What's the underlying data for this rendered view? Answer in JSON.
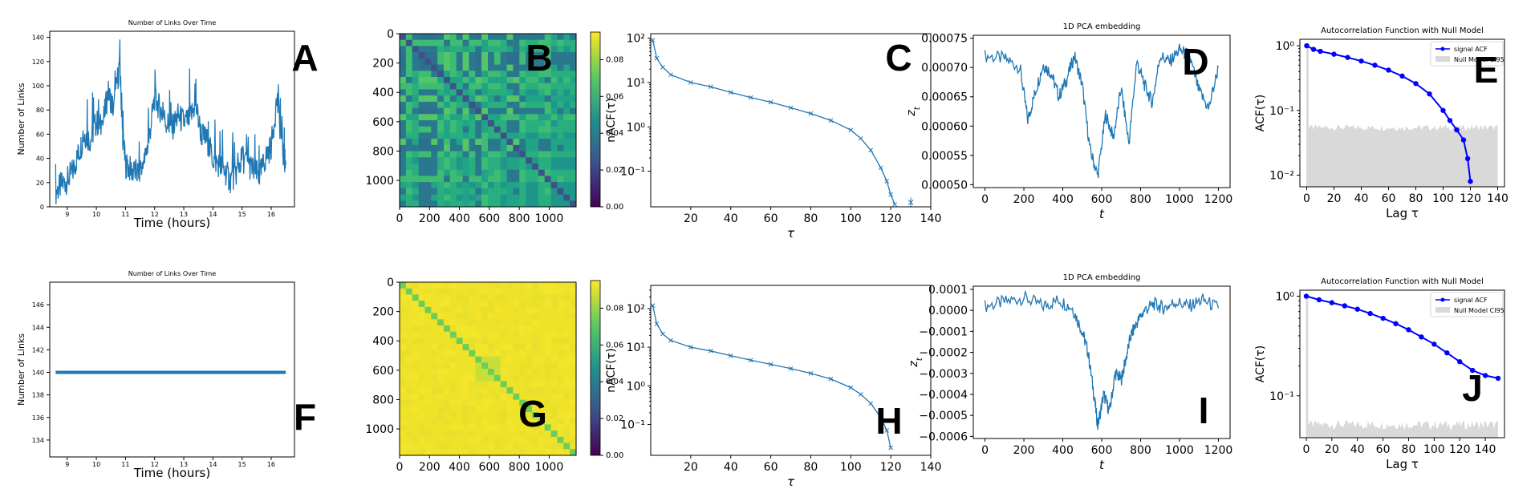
{
  "colors": {
    "line": "#1f77b4",
    "acf": "#0000ff",
    "null_band": "#d9d9d9",
    "yellow": "#f2e01c",
    "viridis": [
      "#440154",
      "#3b528b",
      "#21918c",
      "#5ec962",
      "#fde725"
    ]
  },
  "chart_data": [
    {
      "id": "A",
      "type": "line",
      "letter": "A",
      "title": "Number of Links Over Time",
      "xlabel": "Time (hours)",
      "ylabel": "Number of Links",
      "xlim": [
        8.4,
        16.8
      ],
      "ylim": [
        0,
        145
      ],
      "xticks": [
        9,
        10,
        11,
        12,
        13,
        14,
        15,
        16
      ],
      "yticks": [
        0,
        20,
        40,
        60,
        80,
        100,
        120,
        140
      ],
      "ytick_labels": [
        "0",
        "20",
        "40",
        "60",
        "80",
        "100",
        "120",
        "140"
      ],
      "points": [
        [
          8.6,
          12
        ],
        [
          8.8,
          18
        ],
        [
          9.0,
          22
        ],
        [
          9.2,
          30
        ],
        [
          9.4,
          45
        ],
        [
          9.6,
          60
        ],
        [
          9.8,
          55
        ],
        [
          10.0,
          70
        ],
        [
          10.2,
          65
        ],
        [
          10.4,
          95
        ],
        [
          10.6,
          80
        ],
        [
          10.8,
          120
        ],
        [
          10.9,
          60
        ],
        [
          11.0,
          35
        ],
        [
          11.2,
          30
        ],
        [
          11.4,
          28
        ],
        [
          11.6,
          32
        ],
        [
          11.8,
          55
        ],
        [
          12.0,
          90
        ],
        [
          12.2,
          80
        ],
        [
          12.4,
          70
        ],
        [
          12.6,
          65
        ],
        [
          12.8,
          75
        ],
        [
          13.0,
          70
        ],
        [
          13.2,
          72
        ],
        [
          13.4,
          85
        ],
        [
          13.6,
          60
        ],
        [
          13.8,
          55
        ],
        [
          14.0,
          40
        ],
        [
          14.2,
          35
        ],
        [
          14.4,
          30
        ],
        [
          14.6,
          22
        ],
        [
          14.8,
          28
        ],
        [
          15.0,
          40
        ],
        [
          15.2,
          35
        ],
        [
          15.4,
          30
        ],
        [
          15.6,
          25
        ],
        [
          15.8,
          40
        ],
        [
          16.0,
          50
        ],
        [
          16.2,
          90
        ],
        [
          16.4,
          45
        ],
        [
          16.5,
          35
        ]
      ]
    },
    {
      "id": "B",
      "type": "heatmap",
      "letter": "B",
      "xticks": [
        0,
        200,
        400,
        600,
        800,
        1000
      ],
      "yticks": [
        0,
        200,
        400,
        600,
        800,
        1000
      ],
      "extent": 1180,
      "colorbar_ticks": [
        "0.00",
        "0.02",
        "0.04",
        "0.06",
        "0.08"
      ],
      "colorbar_max": 0.095,
      "variant": "green"
    },
    {
      "id": "C",
      "type": "line",
      "scale": "log",
      "letter": "C",
      "xlabel": "τ",
      "ylabel": "nACF(τ)",
      "xlim": [
        0,
        140
      ],
      "ylim_log": [
        -1.8,
        2.1
      ],
      "xticks": [
        20,
        40,
        60,
        80,
        100,
        120,
        140
      ],
      "ytick_exps": [
        -1,
        0,
        1,
        2
      ],
      "ytick_labels": [
        "10⁻¹",
        "10⁰",
        "10¹",
        "10²"
      ],
      "points": [
        [
          1,
          90
        ],
        [
          3,
          35
        ],
        [
          6,
          22
        ],
        [
          10,
          15
        ],
        [
          20,
          10
        ],
        [
          30,
          8
        ],
        [
          40,
          6
        ],
        [
          50,
          4.6
        ],
        [
          60,
          3.6
        ],
        [
          70,
          2.7
        ],
        [
          80,
          2.0
        ],
        [
          90,
          1.4
        ],
        [
          100,
          0.85
        ],
        [
          105,
          0.55
        ],
        [
          110,
          0.3
        ],
        [
          115,
          0.12
        ],
        [
          118,
          0.06
        ],
        [
          120,
          0.03
        ],
        [
          122,
          0.018
        ]
      ],
      "outlier": [
        130,
        0.02
      ]
    },
    {
      "id": "D",
      "type": "line",
      "letter": "D",
      "title": "1D PCA embedding",
      "xlabel": "t",
      "ylabel": "z_t",
      "xlim": [
        -60,
        1260
      ],
      "ylim": [
        0.000495,
        0.000755
      ],
      "xticks": [
        0,
        200,
        400,
        600,
        800,
        1000,
        1200
      ],
      "yticks": [
        0.0005,
        0.00055,
        0.0006,
        0.00065,
        0.0007,
        0.00075
      ],
      "ytick_labels": [
        "0.00050",
        "0.00055",
        "0.00060",
        "0.00065",
        "0.00070",
        "0.00075"
      ],
      "points": [
        [
          0,
          0.00072
        ],
        [
          100,
          0.000715
        ],
        [
          180,
          0.0007
        ],
        [
          220,
          0.00061
        ],
        [
          260,
          0.00066
        ],
        [
          300,
          0.000705
        ],
        [
          340,
          0.00069
        ],
        [
          380,
          0.00065
        ],
        [
          420,
          0.00068
        ],
        [
          460,
          0.00072
        ],
        [
          500,
          0.00067
        ],
        [
          540,
          0.00056
        ],
        [
          580,
          0.000515
        ],
        [
          620,
          0.00062
        ],
        [
          660,
          0.00058
        ],
        [
          700,
          0.000665
        ],
        [
          740,
          0.00057
        ],
        [
          780,
          0.00071
        ],
        [
          820,
          0.00067
        ],
        [
          860,
          0.00064
        ],
        [
          900,
          0.00072
        ],
        [
          950,
          0.00071
        ],
        [
          1000,
          0.00073
        ],
        [
          1050,
          0.00072
        ],
        [
          1100,
          0.00066
        ],
        [
          1150,
          0.00063
        ],
        [
          1200,
          0.0007
        ]
      ]
    },
    {
      "id": "E",
      "type": "line",
      "scale": "log",
      "letter": "E",
      "title": "Autocorrelation Function with Null Model",
      "xlabel": "Lag τ",
      "ylabel": "ACF(τ)",
      "xlim": [
        -5,
        145
      ],
      "ylim_log": [
        -2.18,
        0.1
      ],
      "xticks": [
        0,
        20,
        40,
        60,
        80,
        100,
        120,
        140
      ],
      "ytick_exps": [
        -2,
        -1,
        0
      ],
      "ytick_labels": [
        "10⁻²",
        "10⁻¹",
        "10⁰"
      ],
      "legend": [
        "signal ACF",
        "Null Model CI95"
      ],
      "null_level": 0.055,
      "null_xmax": 140,
      "points": [
        [
          0,
          1.0
        ],
        [
          5,
          0.88
        ],
        [
          10,
          0.82
        ],
        [
          20,
          0.74
        ],
        [
          30,
          0.66
        ],
        [
          40,
          0.58
        ],
        [
          50,
          0.5
        ],
        [
          60,
          0.42
        ],
        [
          70,
          0.34
        ],
        [
          80,
          0.26
        ],
        [
          90,
          0.18
        ],
        [
          100,
          0.1
        ],
        [
          105,
          0.07
        ],
        [
          110,
          0.05
        ],
        [
          115,
          0.035
        ],
        [
          118,
          0.018
        ],
        [
          120,
          0.008
        ]
      ]
    },
    {
      "id": "F",
      "type": "line",
      "letter": "F",
      "title": "Number of Links Over Time",
      "xlabel": "Time (hours)",
      "ylabel": "Number of Links",
      "xlim": [
        8.4,
        16.8
      ],
      "ylim": [
        132.5,
        148
      ],
      "xticks": [
        9,
        10,
        11,
        12,
        13,
        14,
        15,
        16
      ],
      "yticks": [
        134,
        136,
        138,
        140,
        142,
        144,
        146
      ],
      "ytick_labels": [
        "134",
        "136",
        "138",
        "140",
        "142",
        "144",
        "146"
      ],
      "points": [
        [
          8.6,
          140
        ],
        [
          16.5,
          140
        ]
      ]
    },
    {
      "id": "G",
      "type": "heatmap",
      "letter": "G",
      "xticks": [
        0,
        200,
        400,
        600,
        800,
        1000
      ],
      "yticks": [
        0,
        200,
        400,
        600,
        800,
        1000
      ],
      "extent": 1180,
      "colorbar_ticks": [
        "0.00",
        "0.02",
        "0.04",
        "0.06",
        "0.08"
      ],
      "colorbar_max": 0.095,
      "variant": "yellow"
    },
    {
      "id": "H",
      "type": "line",
      "scale": "log",
      "letter": "H",
      "xlabel": "τ",
      "ylabel": "nACF(τ)",
      "xlim": [
        0,
        140
      ],
      "ylim_log": [
        -1.8,
        2.6
      ],
      "xticks": [
        20,
        40,
        60,
        80,
        100,
        120,
        140
      ],
      "ytick_exps": [
        -1,
        0,
        1,
        2
      ],
      "ytick_labels": [
        "10⁻¹",
        "10⁰",
        "10¹",
        "10²"
      ],
      "points": [
        [
          1,
          120
        ],
        [
          3,
          40
        ],
        [
          6,
          22
        ],
        [
          10,
          15
        ],
        [
          20,
          10
        ],
        [
          30,
          8
        ],
        [
          40,
          6
        ],
        [
          50,
          4.6
        ],
        [
          60,
          3.6
        ],
        [
          70,
          2.8
        ],
        [
          80,
          2.1
        ],
        [
          90,
          1.5
        ],
        [
          100,
          0.9
        ],
        [
          105,
          0.6
        ],
        [
          110,
          0.35
        ],
        [
          115,
          0.15
        ],
        [
          118,
          0.07
        ],
        [
          120,
          0.025
        ]
      ]
    },
    {
      "id": "I",
      "type": "line",
      "letter": "I",
      "title": "1D PCA embedding",
      "xlabel": "t",
      "ylabel": "z_t",
      "xlim": [
        -60,
        1260
      ],
      "ylim": [
        -0.00061,
        0.000115
      ],
      "xticks": [
        0,
        200,
        400,
        600,
        800,
        1000,
        1200
      ],
      "yticks": [
        0.0001,
        0.0,
        -0.0001,
        -0.0002,
        -0.0003,
        -0.0004,
        -0.0005,
        -0.0006
      ],
      "ytick_labels": [
        "0.0001",
        "0.0000",
        "−0.0001",
        "−0.0002",
        "−0.0003",
        "−0.0004",
        "−0.0005",
        "−0.0006"
      ],
      "points": [
        [
          0,
          2e-05
        ],
        [
          100,
          4e-05
        ],
        [
          200,
          6e-05
        ],
        [
          300,
          2e-05
        ],
        [
          380,
          5e-05
        ],
        [
          450,
          1e-05
        ],
        [
          500,
          -0.0001
        ],
        [
          530,
          -0.0002
        ],
        [
          560,
          -0.0004
        ],
        [
          580,
          -0.00055
        ],
        [
          610,
          -0.0004
        ],
        [
          640,
          -0.00048
        ],
        [
          670,
          -0.0003
        ],
        [
          700,
          -0.00033
        ],
        [
          720,
          -0.00025
        ],
        [
          750,
          -0.00012
        ],
        [
          780,
          -6e-05
        ],
        [
          820,
          0.0
        ],
        [
          870,
          3e-05
        ],
        [
          920,
          1e-05
        ],
        [
          980,
          4e-05
        ],
        [
          1050,
          2e-05
        ],
        [
          1120,
          5e-05
        ],
        [
          1200,
          1e-05
        ]
      ]
    },
    {
      "id": "J",
      "type": "line",
      "scale": "log",
      "letter": "J",
      "title": "Autocorrelation Function with Null Model",
      "xlabel": "Lag τ",
      "ylabel": "ACF(τ)",
      "xlim": [
        -5,
        155
      ],
      "ylim_log": [
        -1.42,
        0.06
      ],
      "xticks": [
        0,
        20,
        40,
        60,
        80,
        100,
        120,
        140
      ],
      "ytick_exps": [
        -1,
        0
      ],
      "ytick_labels": [
        "10⁻¹",
        "10⁰"
      ],
      "legend": [
        "signal ACF",
        "Null Model CI95"
      ],
      "null_level": 0.052,
      "null_xmax": 150,
      "points": [
        [
          0,
          1.0
        ],
        [
          10,
          0.92
        ],
        [
          20,
          0.86
        ],
        [
          30,
          0.8
        ],
        [
          40,
          0.74
        ],
        [
          50,
          0.67
        ],
        [
          60,
          0.6
        ],
        [
          70,
          0.53
        ],
        [
          80,
          0.46
        ],
        [
          90,
          0.39
        ],
        [
          100,
          0.33
        ],
        [
          110,
          0.27
        ],
        [
          120,
          0.22
        ],
        [
          130,
          0.18
        ],
        [
          140,
          0.16
        ],
        [
          150,
          0.15
        ]
      ]
    }
  ]
}
